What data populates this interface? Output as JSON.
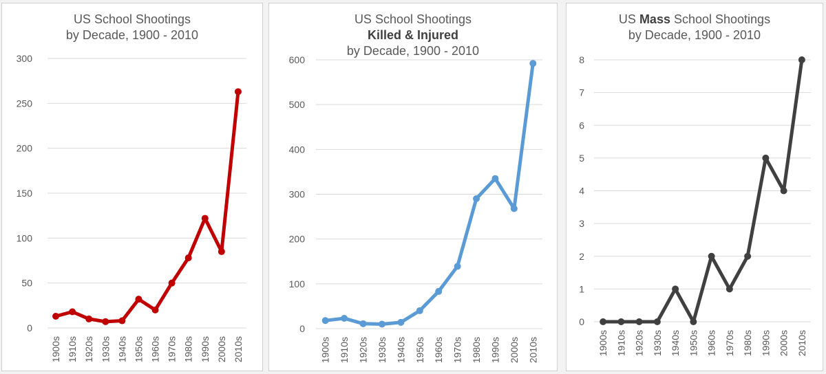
{
  "chart_data": [
    {
      "type": "line",
      "title_line1": "US School Shootings",
      "title_line2": "by Decade, 1900 - 2010",
      "categories": [
        "1900s",
        "1910s",
        "1920s",
        "1930s",
        "1940s",
        "1950s",
        "1960s",
        "1970s",
        "1980s",
        "1990s",
        "2000s",
        "2010s"
      ],
      "values": [
        13,
        18,
        10,
        7,
        8,
        32,
        20,
        50,
        78,
        122,
        85,
        263
      ],
      "ylim": [
        0,
        300
      ],
      "yticks": [
        0,
        50,
        100,
        150,
        200,
        250,
        300
      ],
      "xlabel": "",
      "ylabel": "",
      "color": "#c00000",
      "grid": true
    },
    {
      "type": "line",
      "title_line1": "US School Shootings",
      "title_line2": "Killed & Injured",
      "title_line3": "by Decade, 1900 - 2010",
      "categories": [
        "1900s",
        "1910s",
        "1920s",
        "1930s",
        "1940s",
        "1950s",
        "1960s",
        "1970s",
        "1980s",
        "1990s",
        "2000s",
        "2010s"
      ],
      "values": [
        18,
        23,
        11,
        10,
        14,
        40,
        83,
        139,
        290,
        335,
        268,
        592
      ],
      "ylim": [
        0,
        600
      ],
      "yticks": [
        0,
        100,
        200,
        300,
        400,
        500,
        600
      ],
      "xlabel": "",
      "ylabel": "",
      "color": "#5b9bd5",
      "grid": true
    },
    {
      "type": "line",
      "title_prefix": "US ",
      "title_bold": "Mass",
      "title_suffix": " School Shootings",
      "title_line2": "by Decade, 1900 - 2010",
      "categories": [
        "1900s",
        "1910s",
        "1920s",
        "1930s",
        "1940s",
        "1950s",
        "1960s",
        "1970s",
        "1980s",
        "1990s",
        "2000s",
        "2010s"
      ],
      "values": [
        0,
        0,
        0,
        0,
        1,
        0,
        2,
        1,
        2,
        5,
        4,
        8
      ],
      "ylim": [
        0,
        8
      ],
      "yticks": [
        0,
        1,
        2,
        3,
        4,
        5,
        6,
        7,
        8
      ],
      "xlabel": "",
      "ylabel": "",
      "color": "#404040",
      "grid": true
    }
  ]
}
